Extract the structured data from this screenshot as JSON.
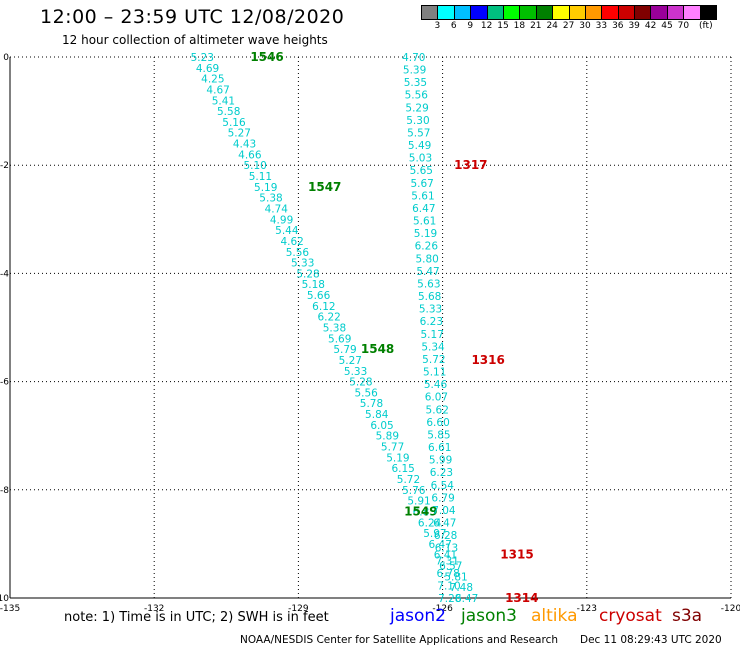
{
  "header": {
    "title": "12:00 – 23:59 UTC 12/08/2020",
    "subtitle": "12 hour collection of altimeter wave heights"
  },
  "color_scale": {
    "colors": [
      "#808080",
      "#00ffff",
      "#00bfff",
      "#0000ff",
      "#00bf7f",
      "#00ff00",
      "#00bf00",
      "#008000",
      "#ffff00",
      "#ffcc00",
      "#ff9900",
      "#ff0000",
      "#cc0000",
      "#800000",
      "#990099",
      "#cc33cc",
      "#ff80ff",
      "#000000"
    ],
    "labels": [
      "3",
      "6",
      "9",
      "12",
      "15",
      "18",
      "21",
      "24",
      "27",
      "30",
      "33",
      "36",
      "39",
      "42",
      "45",
      "70",
      "(ft)"
    ]
  },
  "footer": {
    "note": "note: 1) Time is in UTC; 2) SWH is in feet",
    "satellites": [
      {
        "name": "jason2",
        "color": "#0000ff"
      },
      {
        "name": "jason3",
        "color": "#008000"
      },
      {
        "name": "altika",
        "color": "#ff9900"
      },
      {
        "name": "cryosat",
        "color": "#cc0000"
      },
      {
        "name": "s3a",
        "color": "#800000"
      }
    ],
    "credit": "NOAA/NESDIS Center for Satellite Applications and Research",
    "timestamp": "Dec 11 08:29:43 UTC 2020"
  },
  "chart_data": {
    "type": "scatter",
    "xlim": [
      -135,
      -120
    ],
    "ylim": [
      -10,
      0
    ],
    "x_ticks": [
      -135,
      -132,
      -129,
      -126,
      -123,
      -120
    ],
    "y_ticks": [
      0,
      -2,
      -4,
      -6,
      -8,
      -10
    ],
    "grid": true,
    "value_color": "#00cccc",
    "tracks": [
      {
        "satellite": "jason3",
        "color": "#008000",
        "lon_start": -131.0,
        "lat_start": 0.0,
        "lon_end": -125.5,
        "lat_end": -10.0,
        "values": [
          "5.23",
          "4.69",
          "4.25",
          "4.67",
          "5.41",
          "5.58",
          "5.16",
          "5.27",
          "4.43",
          "4.66",
          "5.10",
          "5.11",
          "5.19",
          "5.38",
          "4.74",
          "4.99",
          "5.44",
          "4.62",
          "5.56",
          "5.33",
          "5.28",
          "5.18",
          "5.66",
          "6.12",
          "6.22",
          "5.38",
          "5.69",
          "5.79",
          "5.27",
          "5.33",
          "5.28",
          "5.56",
          "5.78",
          "5.84",
          "6.05",
          "5.89",
          "5.77",
          "5.19",
          "6.15",
          "5.72",
          "5.76",
          "5.91",
          "6.85",
          "6.24",
          "5.97",
          "6.47",
          "6.41",
          "6.57",
          "5.81",
          "7.48",
          "6.47"
        ],
        "time_labels": [
          {
            "text": "1546",
            "lon": -130.0,
            "lat": 0.0
          },
          {
            "text": "1547",
            "lon": -128.8,
            "lat": -2.4
          },
          {
            "text": "1548",
            "lon": -127.7,
            "lat": -5.4
          },
          {
            "text": "1549",
            "lon": -126.8,
            "lat": -8.4
          }
        ]
      },
      {
        "satellite": "cryosat",
        "color": "#cc0000",
        "lon_start": -126.6,
        "lat_start": 0.0,
        "lon_end": -125.85,
        "lat_end": -10.0,
        "values": [
          "4.70",
          "5.39",
          "5.35",
          "5.56",
          "5.29",
          "5.30",
          "5.57",
          "5.49",
          "5.03",
          "5.65",
          "5.67",
          "5.61",
          "6.47",
          "5.61",
          "5.19",
          "6.26",
          "5.80",
          "5.47",
          "5.63",
          "5.68",
          "5.33",
          "6.23",
          "5.17",
          "5.34",
          "5.72",
          "5.11",
          "5.46",
          "6.07",
          "5.62",
          "6.60",
          "5.85",
          "6.61",
          "5.99",
          "6.23",
          "6.54",
          "6.79",
          "7.04",
          "6.47",
          "6.28",
          "6.13",
          "7.31",
          "6.78",
          "7.10",
          "7.28"
        ],
        "time_labels": [
          {
            "text": "1317",
            "lon": -125.76,
            "lat": -2.0
          },
          {
            "text": "1316",
            "lon": -125.4,
            "lat": -5.6
          },
          {
            "text": "1315",
            "lon": -124.8,
            "lat": -9.2
          },
          {
            "text": "1314",
            "lon": -124.7,
            "lat": -10.0
          }
        ]
      }
    ]
  }
}
